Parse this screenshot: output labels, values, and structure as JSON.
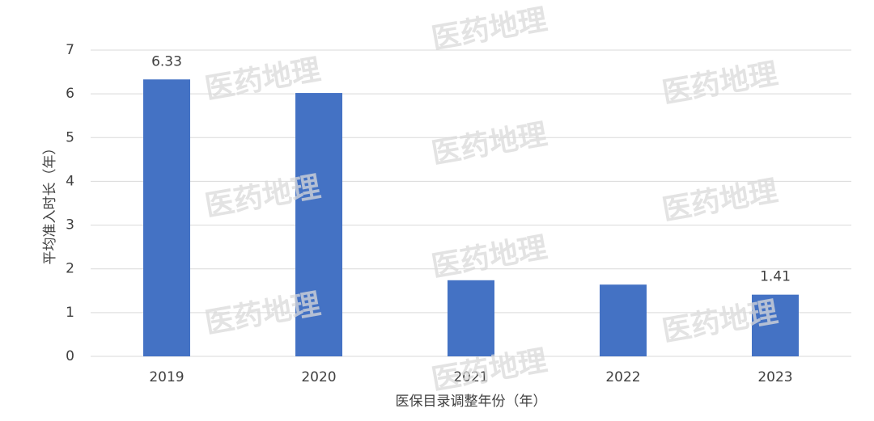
{
  "chart_data": {
    "type": "bar",
    "x_label": "医保目录调整年份（年）",
    "y_label": "平均准入时长（年）",
    "categories": [
      "2019",
      "2020",
      "2021",
      "2022",
      "2023"
    ],
    "values": [
      6.33,
      6.02,
      1.74,
      1.64,
      1.41
    ],
    "value_labels": [
      "6.33",
      null,
      null,
      null,
      "1.41"
    ],
    "color": "#4472c4",
    "ylim": [
      0,
      7
    ],
    "yticks": [
      0,
      1,
      2,
      3,
      4,
      5,
      6,
      7
    ],
    "grid": true,
    "watermark": "医药地理"
  }
}
